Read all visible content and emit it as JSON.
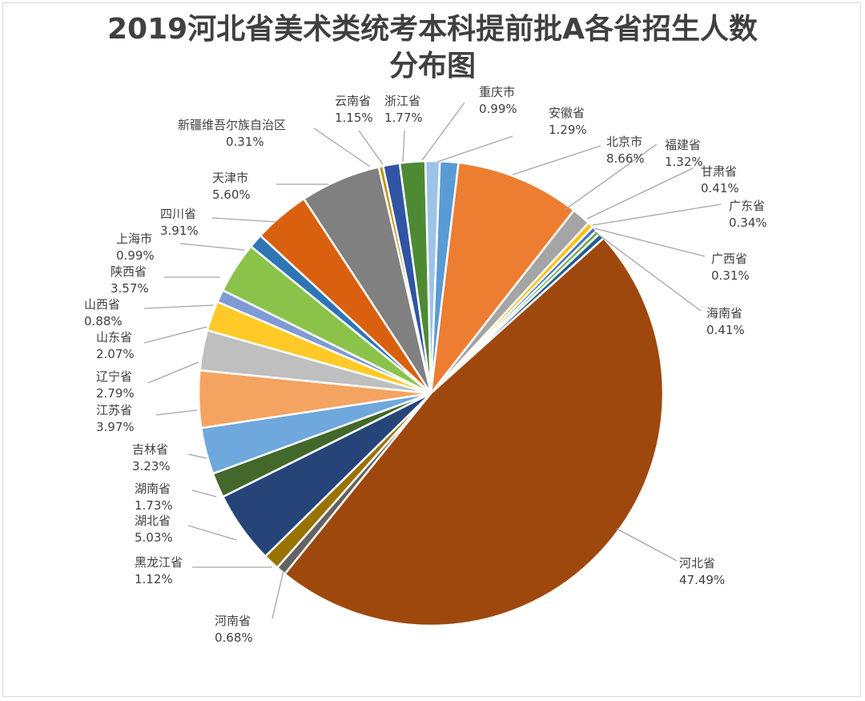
{
  "chart_data": {
    "type": "pie",
    "title_line1": "2019河北省美术类统考本科提前批A各省招生人数",
    "title_line2": "分布图",
    "slices": [
      {
        "label": "安徽省",
        "value": "1.29%",
        "pct": 1.29,
        "color": "#5b9bd5"
      },
      {
        "label": "北京市",
        "value": "8.66%",
        "pct": 8.66,
        "color": "#ed7d31"
      },
      {
        "label": "福建省",
        "value": "1.32%",
        "pct": 1.32,
        "color": "#a5a5a5"
      },
      {
        "label": "甘肃省",
        "value": "0.41%",
        "pct": 0.41,
        "color": "#ffc000"
      },
      {
        "label": "广东省",
        "value": "0.34%",
        "pct": 0.34,
        "color": "#4472c4"
      },
      {
        "label": "广西省",
        "value": "0.31%",
        "pct": 0.31,
        "color": "#70ad47"
      },
      {
        "label": "海南省",
        "value": "0.41%",
        "pct": 0.41,
        "color": "#255e91"
      },
      {
        "label": "河北省",
        "value": "47.49%",
        "pct": 47.49,
        "color": "#9e480e"
      },
      {
        "label": "河南省",
        "value": "0.68%",
        "pct": 0.68,
        "color": "#636363"
      },
      {
        "label": "黑龙江省",
        "value": "1.12%",
        "pct": 1.12,
        "color": "#997300"
      },
      {
        "label": "湖北省",
        "value": "5.03%",
        "pct": 5.03,
        "color": "#264478"
      },
      {
        "label": "湖南省",
        "value": "1.73%",
        "pct": 1.73,
        "color": "#43682b"
      },
      {
        "label": "吉林省",
        "value": "3.23%",
        "pct": 3.23,
        "color": "#6fa8dc"
      },
      {
        "label": "江苏省",
        "value": "3.97%",
        "pct": 3.97,
        "color": "#f4a460"
      },
      {
        "label": "辽宁省",
        "value": "2.79%",
        "pct": 2.79,
        "color": "#bfbfbf"
      },
      {
        "label": "山东省",
        "value": "2.07%",
        "pct": 2.07,
        "color": "#ffca28"
      },
      {
        "label": "山西省",
        "value": "0.88%",
        "pct": 0.88,
        "color": "#7f9bd5"
      },
      {
        "label": "陕西省",
        "value": "3.57%",
        "pct": 3.57,
        "color": "#8bc34a"
      },
      {
        "label": "上海市",
        "value": "0.99%",
        "pct": 0.99,
        "color": "#2e75b6"
      },
      {
        "label": "四川省",
        "value": "3.91%",
        "pct": 3.91,
        "color": "#d9600f"
      },
      {
        "label": "天津市",
        "value": "5.60%",
        "pct": 5.6,
        "color": "#808080"
      },
      {
        "label": "新疆维吾尔族自治区",
        "value": "0.31%",
        "pct": 0.31,
        "color": "#c09100"
      },
      {
        "label": "云南省",
        "value": "1.15%",
        "pct": 1.15,
        "color": "#2f55a4"
      },
      {
        "label": "浙江省",
        "value": "1.77%",
        "pct": 1.77,
        "color": "#4e8a33"
      },
      {
        "label": "重庆市",
        "value": "0.99%",
        "pct": 0.99,
        "color": "#9dc3e6"
      }
    ]
  }
}
